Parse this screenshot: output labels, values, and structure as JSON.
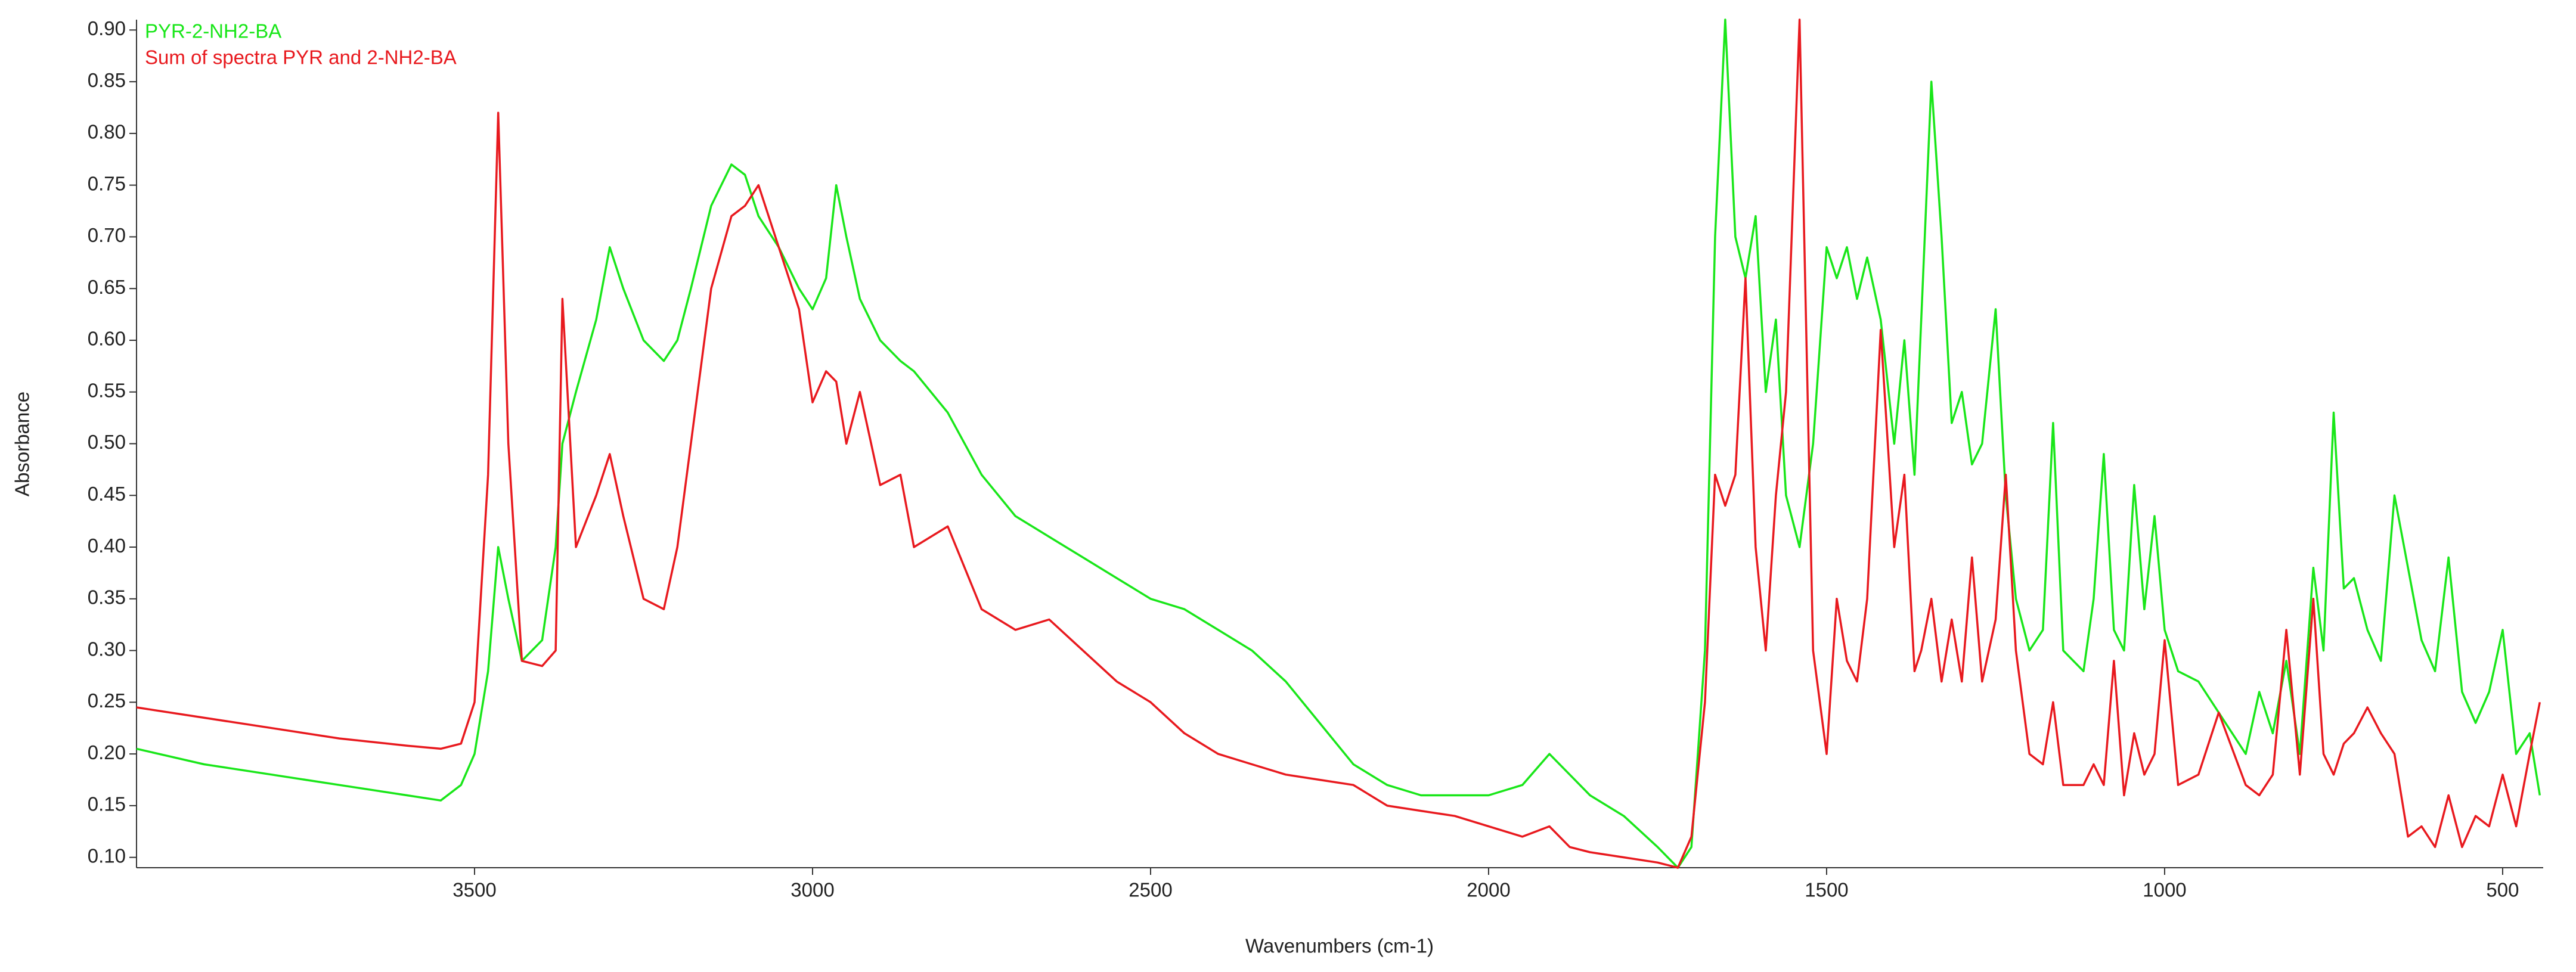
{
  "chart_data": {
    "type": "line",
    "x_label": "Wavenumbers (cm-1)",
    "y_label": "Absorbance",
    "x": [
      4000,
      3900,
      3800,
      3700,
      3600,
      3550,
      3520,
      3500,
      3480,
      3465,
      3450,
      3430,
      3400,
      3380,
      3370,
      3350,
      3320,
      3300,
      3280,
      3250,
      3220,
      3200,
      3180,
      3150,
      3120,
      3100,
      3080,
      3050,
      3020,
      3000,
      2980,
      2965,
      2950,
      2930,
      2900,
      2870,
      2850,
      2800,
      2750,
      2700,
      2650,
      2600,
      2550,
      2500,
      2450,
      2400,
      2350,
      2300,
      2250,
      2200,
      2150,
      2100,
      2050,
      2000,
      1950,
      1910,
      1880,
      1850,
      1800,
      1750,
      1720,
      1700,
      1680,
      1665,
      1650,
      1635,
      1620,
      1605,
      1590,
      1575,
      1560,
      1540,
      1520,
      1500,
      1485,
      1470,
      1455,
      1440,
      1420,
      1400,
      1385,
      1370,
      1360,
      1345,
      1330,
      1315,
      1300,
      1285,
      1270,
      1250,
      1235,
      1220,
      1200,
      1180,
      1165,
      1150,
      1120,
      1105,
      1090,
      1075,
      1060,
      1045,
      1030,
      1015,
      1000,
      980,
      950,
      920,
      880,
      860,
      840,
      820,
      800,
      780,
      765,
      750,
      735,
      720,
      700,
      680,
      660,
      640,
      620,
      600,
      580,
      560,
      540,
      520,
      500,
      480,
      460,
      445
    ],
    "series": [
      {
        "name": "PYR-2-NH2-BA",
        "color": "#19e619",
        "values": [
          0.205,
          0.19,
          0.18,
          0.17,
          0.16,
          0.155,
          0.17,
          0.2,
          0.28,
          0.4,
          0.35,
          0.29,
          0.31,
          0.4,
          0.5,
          0.55,
          0.62,
          0.69,
          0.65,
          0.6,
          0.58,
          0.6,
          0.65,
          0.73,
          0.77,
          0.76,
          0.72,
          0.69,
          0.65,
          0.63,
          0.66,
          0.75,
          0.7,
          0.64,
          0.6,
          0.58,
          0.57,
          0.53,
          0.47,
          0.43,
          0.41,
          0.39,
          0.37,
          0.35,
          0.34,
          0.32,
          0.3,
          0.27,
          0.23,
          0.19,
          0.17,
          0.16,
          0.16,
          0.16,
          0.17,
          0.2,
          0.18,
          0.16,
          0.14,
          0.11,
          0.09,
          0.11,
          0.3,
          0.7,
          0.91,
          0.7,
          0.66,
          0.72,
          0.55,
          0.62,
          0.45,
          0.4,
          0.5,
          0.69,
          0.66,
          0.69,
          0.64,
          0.68,
          0.62,
          0.5,
          0.6,
          0.47,
          0.62,
          0.85,
          0.7,
          0.52,
          0.55,
          0.48,
          0.5,
          0.63,
          0.45,
          0.35,
          0.3,
          0.32,
          0.52,
          0.3,
          0.28,
          0.35,
          0.49,
          0.32,
          0.3,
          0.46,
          0.34,
          0.43,
          0.32,
          0.28,
          0.27,
          0.24,
          0.2,
          0.26,
          0.22,
          0.29,
          0.2,
          0.38,
          0.3,
          0.53,
          0.36,
          0.37,
          0.32,
          0.29,
          0.45,
          0.38,
          0.31,
          0.28,
          0.39,
          0.26,
          0.23,
          0.26,
          0.32,
          0.2,
          0.22,
          0.16
        ]
      },
      {
        "name": "Sum of spectra PYR and 2-NH2-BA",
        "color": "#e8191e",
        "values": [
          0.245,
          0.235,
          0.225,
          0.215,
          0.208,
          0.205,
          0.21,
          0.25,
          0.47,
          0.82,
          0.5,
          0.29,
          0.285,
          0.3,
          0.64,
          0.4,
          0.45,
          0.49,
          0.43,
          0.35,
          0.34,
          0.4,
          0.5,
          0.65,
          0.72,
          0.73,
          0.75,
          0.69,
          0.63,
          0.54,
          0.57,
          0.56,
          0.5,
          0.55,
          0.46,
          0.47,
          0.4,
          0.42,
          0.34,
          0.32,
          0.33,
          0.3,
          0.27,
          0.25,
          0.22,
          0.2,
          0.19,
          0.18,
          0.175,
          0.17,
          0.15,
          0.145,
          0.14,
          0.13,
          0.12,
          0.13,
          0.11,
          0.105,
          0.1,
          0.095,
          0.09,
          0.12,
          0.25,
          0.47,
          0.44,
          0.47,
          0.66,
          0.4,
          0.3,
          0.45,
          0.55,
          0.91,
          0.3,
          0.2,
          0.35,
          0.29,
          0.27,
          0.35,
          0.61,
          0.4,
          0.47,
          0.28,
          0.3,
          0.35,
          0.27,
          0.33,
          0.27,
          0.39,
          0.27,
          0.33,
          0.47,
          0.3,
          0.2,
          0.19,
          0.25,
          0.17,
          0.17,
          0.19,
          0.17,
          0.29,
          0.16,
          0.22,
          0.18,
          0.2,
          0.31,
          0.17,
          0.18,
          0.24,
          0.17,
          0.16,
          0.18,
          0.32,
          0.18,
          0.35,
          0.2,
          0.18,
          0.21,
          0.22,
          0.245,
          0.22,
          0.2,
          0.12,
          0.13,
          0.11,
          0.16,
          0.11,
          0.14,
          0.13,
          0.18,
          0.13,
          0.2,
          0.25
        ]
      }
    ],
    "xlim": [
      4000,
      440
    ],
    "xticks": [
      3500,
      3000,
      2500,
      2000,
      1500,
      1000,
      500
    ],
    "ylim": [
      0.09,
      0.91
    ],
    "yticks": [
      {
        "value": 0.1,
        "label": "0.10"
      },
      0.15,
      {
        "value": 0.2,
        "label": "0.20"
      },
      0.25,
      {
        "value": 0.3,
        "label": "0.30"
      },
      0.35,
      {
        "value": 0.4,
        "label": "0.40"
      },
      0.45,
      {
        "value": 0.5,
        "label": "0.50"
      },
      0.55,
      {
        "value": 0.6,
        "label": "0.60"
      },
      0.65,
      {
        "value": 0.7,
        "label": "0.70"
      },
      0.75,
      {
        "value": 0.8,
        "label": "0.80"
      },
      0.85,
      {
        "value": 0.9,
        "label": "0.90"
      }
    ],
    "grid": false
  }
}
